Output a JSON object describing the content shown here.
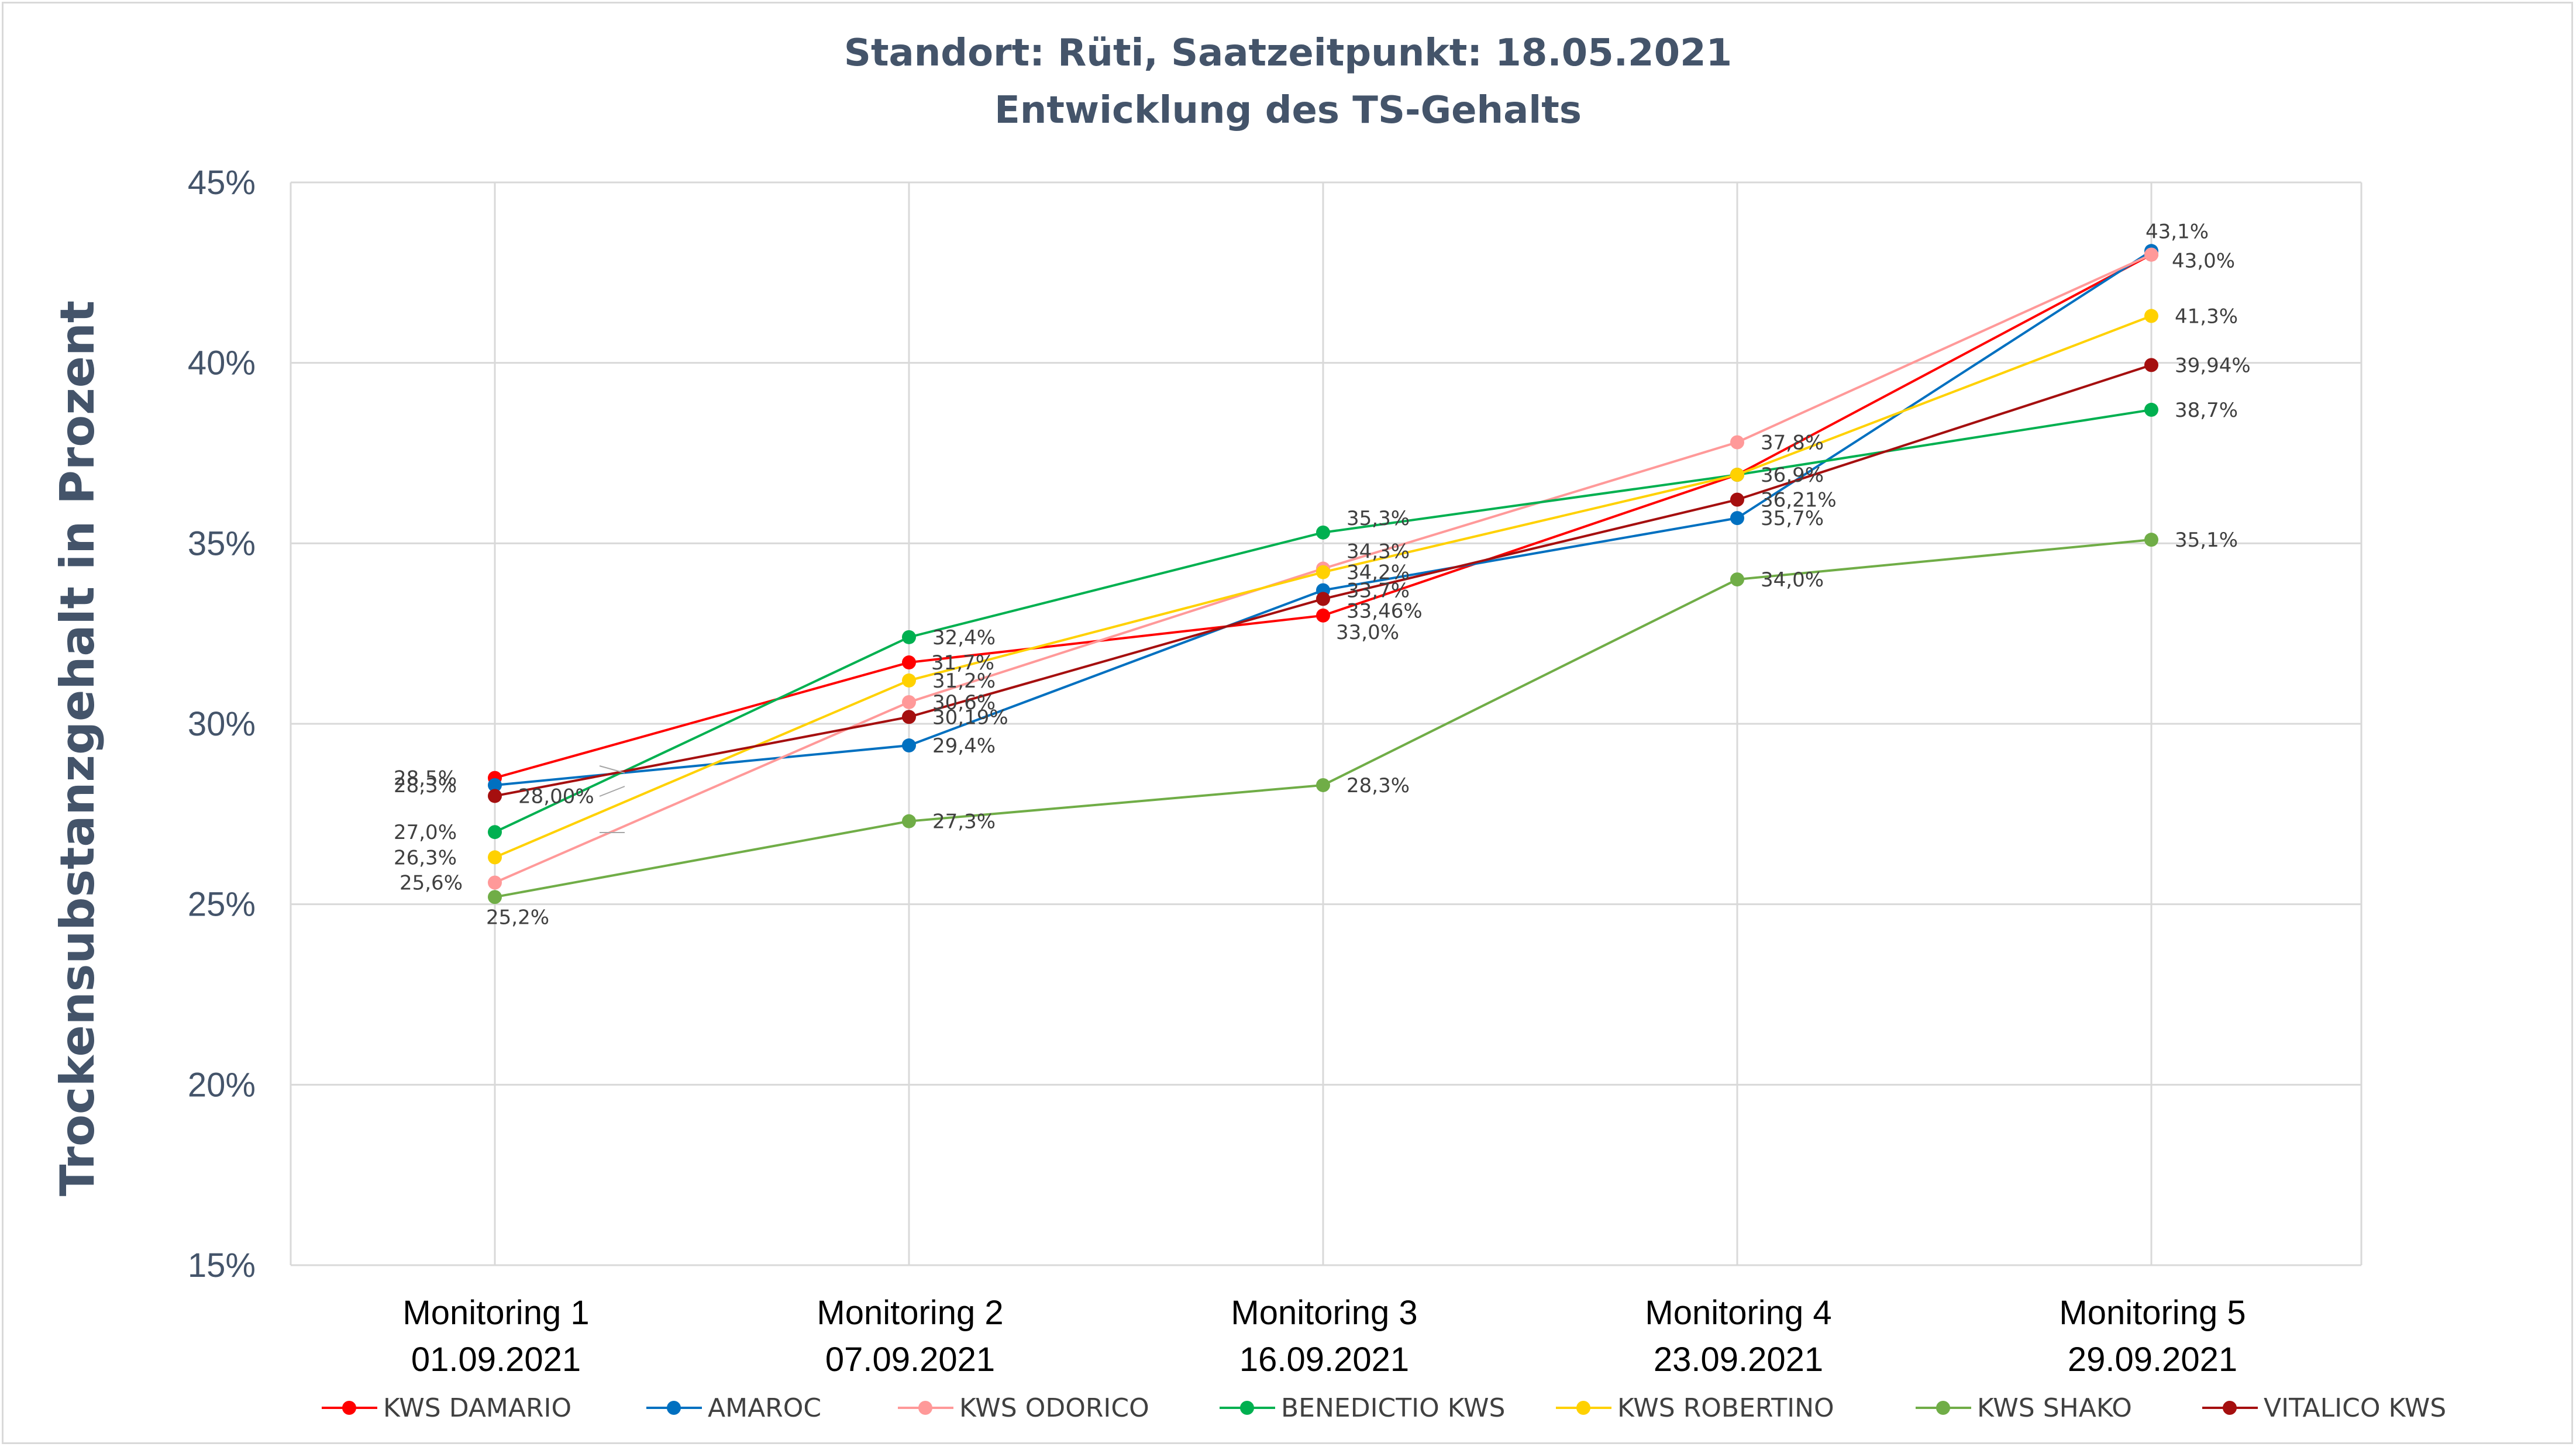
{
  "chart_data": {
    "type": "line",
    "title": "Standort: Rüti, Saatzeitpunkt: 18.05.2021",
    "subtitle": "Entwicklung des TS-Gehalts",
    "ylabel": "Trockensubstanzgehalt in Prozent",
    "xlabel": "",
    "ylim": [
      15,
      45
    ],
    "ytick_step": 5,
    "ytick_labels": [
      "15%",
      "20%",
      "25%",
      "30%",
      "35%",
      "40%",
      "45%"
    ],
    "grid": true,
    "legend_position": "bottom",
    "categories": [
      [
        "Monitoring 1",
        "01.09.2021"
      ],
      [
        "Monitoring 2",
        "07.09.2021"
      ],
      [
        "Monitoring 3",
        "16.09.2021"
      ],
      [
        "Monitoring 4",
        "23.09.2021"
      ],
      [
        "Monitoring 5",
        "29.09.2021"
      ]
    ],
    "series": [
      {
        "name": "KWS DAMARIO",
        "color": "#ff0000",
        "values": [
          28.5,
          31.7,
          33.0,
          36.9,
          43.0
        ],
        "labels": [
          "28,5%",
          "31,7%",
          "33,0%",
          "",
          ""
        ]
      },
      {
        "name": "AMAROC",
        "color": "#0070c0",
        "values": [
          28.3,
          29.4,
          33.7,
          35.7,
          43.1
        ],
        "labels": [
          "28,3%",
          "29,4%",
          "33,7%",
          "35,7%",
          "43,1%"
        ]
      },
      {
        "name": "KWS ODORICO",
        "color": "#ff9999",
        "values": [
          25.6,
          30.6,
          34.3,
          37.8,
          43.0
        ],
        "labels": [
          "25,6%",
          "30,6%",
          "34,3%",
          "37,8%",
          "43,0%"
        ]
      },
      {
        "name": "BENEDICTIO KWS",
        "color": "#00b050",
        "values": [
          27.0,
          32.4,
          35.3,
          36.9,
          38.7
        ],
        "labels": [
          "27,0%",
          "32,4%",
          "35,3%",
          "",
          "38,7%"
        ]
      },
      {
        "name": "KWS ROBERTINO",
        "color": "#ffd100",
        "values": [
          26.3,
          31.2,
          34.2,
          36.9,
          41.3
        ],
        "labels": [
          "26,3%",
          "31,2%",
          "34,2%",
          "36,9%",
          "41,3%"
        ]
      },
      {
        "name": "KWS SHAKO",
        "color": "#70ad47",
        "values": [
          25.2,
          27.3,
          28.3,
          34.0,
          35.1
        ],
        "labels": [
          "25,2%",
          "27,3%",
          "28,3%",
          "34,0%",
          "35,1%"
        ]
      },
      {
        "name": "VITALICO KWS",
        "color": "#a50f0f",
        "values": [
          28.0,
          30.19,
          33.46,
          36.21,
          39.94
        ],
        "labels": [
          "28,00%",
          "30,19%",
          "33,46%",
          "36,21%",
          "39,94%"
        ]
      }
    ]
  }
}
